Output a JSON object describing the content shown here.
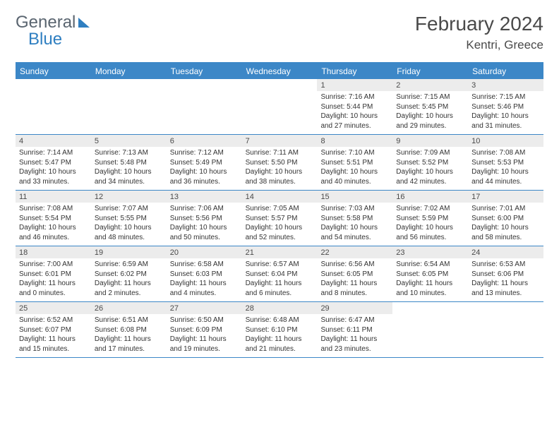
{
  "brand": {
    "part1": "General",
    "part2": "Blue"
  },
  "title": {
    "month": "February 2024",
    "location": "Kentri, Greece"
  },
  "colors": {
    "header_bg": "#3c87c7",
    "daybar_bg": "#ececec",
    "border": "#3c87c7",
    "text": "#333333",
    "brand_gray": "#5a6570",
    "brand_blue": "#2f7fc1"
  },
  "days_of_week": [
    "Sunday",
    "Monday",
    "Tuesday",
    "Wednesday",
    "Thursday",
    "Friday",
    "Saturday"
  ],
  "weeks": [
    [
      {
        "n": "",
        "sr": "",
        "ss": "",
        "dl": ""
      },
      {
        "n": "",
        "sr": "",
        "ss": "",
        "dl": ""
      },
      {
        "n": "",
        "sr": "",
        "ss": "",
        "dl": ""
      },
      {
        "n": "",
        "sr": "",
        "ss": "",
        "dl": ""
      },
      {
        "n": "1",
        "sr": "Sunrise: 7:16 AM",
        "ss": "Sunset: 5:44 PM",
        "dl": "Daylight: 10 hours and 27 minutes."
      },
      {
        "n": "2",
        "sr": "Sunrise: 7:15 AM",
        "ss": "Sunset: 5:45 PM",
        "dl": "Daylight: 10 hours and 29 minutes."
      },
      {
        "n": "3",
        "sr": "Sunrise: 7:15 AM",
        "ss": "Sunset: 5:46 PM",
        "dl": "Daylight: 10 hours and 31 minutes."
      }
    ],
    [
      {
        "n": "4",
        "sr": "Sunrise: 7:14 AM",
        "ss": "Sunset: 5:47 PM",
        "dl": "Daylight: 10 hours and 33 minutes."
      },
      {
        "n": "5",
        "sr": "Sunrise: 7:13 AM",
        "ss": "Sunset: 5:48 PM",
        "dl": "Daylight: 10 hours and 34 minutes."
      },
      {
        "n": "6",
        "sr": "Sunrise: 7:12 AM",
        "ss": "Sunset: 5:49 PM",
        "dl": "Daylight: 10 hours and 36 minutes."
      },
      {
        "n": "7",
        "sr": "Sunrise: 7:11 AM",
        "ss": "Sunset: 5:50 PM",
        "dl": "Daylight: 10 hours and 38 minutes."
      },
      {
        "n": "8",
        "sr": "Sunrise: 7:10 AM",
        "ss": "Sunset: 5:51 PM",
        "dl": "Daylight: 10 hours and 40 minutes."
      },
      {
        "n": "9",
        "sr": "Sunrise: 7:09 AM",
        "ss": "Sunset: 5:52 PM",
        "dl": "Daylight: 10 hours and 42 minutes."
      },
      {
        "n": "10",
        "sr": "Sunrise: 7:08 AM",
        "ss": "Sunset: 5:53 PM",
        "dl": "Daylight: 10 hours and 44 minutes."
      }
    ],
    [
      {
        "n": "11",
        "sr": "Sunrise: 7:08 AM",
        "ss": "Sunset: 5:54 PM",
        "dl": "Daylight: 10 hours and 46 minutes."
      },
      {
        "n": "12",
        "sr": "Sunrise: 7:07 AM",
        "ss": "Sunset: 5:55 PM",
        "dl": "Daylight: 10 hours and 48 minutes."
      },
      {
        "n": "13",
        "sr": "Sunrise: 7:06 AM",
        "ss": "Sunset: 5:56 PM",
        "dl": "Daylight: 10 hours and 50 minutes."
      },
      {
        "n": "14",
        "sr": "Sunrise: 7:05 AM",
        "ss": "Sunset: 5:57 PM",
        "dl": "Daylight: 10 hours and 52 minutes."
      },
      {
        "n": "15",
        "sr": "Sunrise: 7:03 AM",
        "ss": "Sunset: 5:58 PM",
        "dl": "Daylight: 10 hours and 54 minutes."
      },
      {
        "n": "16",
        "sr": "Sunrise: 7:02 AM",
        "ss": "Sunset: 5:59 PM",
        "dl": "Daylight: 10 hours and 56 minutes."
      },
      {
        "n": "17",
        "sr": "Sunrise: 7:01 AM",
        "ss": "Sunset: 6:00 PM",
        "dl": "Daylight: 10 hours and 58 minutes."
      }
    ],
    [
      {
        "n": "18",
        "sr": "Sunrise: 7:00 AM",
        "ss": "Sunset: 6:01 PM",
        "dl": "Daylight: 11 hours and 0 minutes."
      },
      {
        "n": "19",
        "sr": "Sunrise: 6:59 AM",
        "ss": "Sunset: 6:02 PM",
        "dl": "Daylight: 11 hours and 2 minutes."
      },
      {
        "n": "20",
        "sr": "Sunrise: 6:58 AM",
        "ss": "Sunset: 6:03 PM",
        "dl": "Daylight: 11 hours and 4 minutes."
      },
      {
        "n": "21",
        "sr": "Sunrise: 6:57 AM",
        "ss": "Sunset: 6:04 PM",
        "dl": "Daylight: 11 hours and 6 minutes."
      },
      {
        "n": "22",
        "sr": "Sunrise: 6:56 AM",
        "ss": "Sunset: 6:05 PM",
        "dl": "Daylight: 11 hours and 8 minutes."
      },
      {
        "n": "23",
        "sr": "Sunrise: 6:54 AM",
        "ss": "Sunset: 6:05 PM",
        "dl": "Daylight: 11 hours and 10 minutes."
      },
      {
        "n": "24",
        "sr": "Sunrise: 6:53 AM",
        "ss": "Sunset: 6:06 PM",
        "dl": "Daylight: 11 hours and 13 minutes."
      }
    ],
    [
      {
        "n": "25",
        "sr": "Sunrise: 6:52 AM",
        "ss": "Sunset: 6:07 PM",
        "dl": "Daylight: 11 hours and 15 minutes."
      },
      {
        "n": "26",
        "sr": "Sunrise: 6:51 AM",
        "ss": "Sunset: 6:08 PM",
        "dl": "Daylight: 11 hours and 17 minutes."
      },
      {
        "n": "27",
        "sr": "Sunrise: 6:50 AM",
        "ss": "Sunset: 6:09 PM",
        "dl": "Daylight: 11 hours and 19 minutes."
      },
      {
        "n": "28",
        "sr": "Sunrise: 6:48 AM",
        "ss": "Sunset: 6:10 PM",
        "dl": "Daylight: 11 hours and 21 minutes."
      },
      {
        "n": "29",
        "sr": "Sunrise: 6:47 AM",
        "ss": "Sunset: 6:11 PM",
        "dl": "Daylight: 11 hours and 23 minutes."
      },
      {
        "n": "",
        "sr": "",
        "ss": "",
        "dl": ""
      },
      {
        "n": "",
        "sr": "",
        "ss": "",
        "dl": ""
      }
    ]
  ]
}
